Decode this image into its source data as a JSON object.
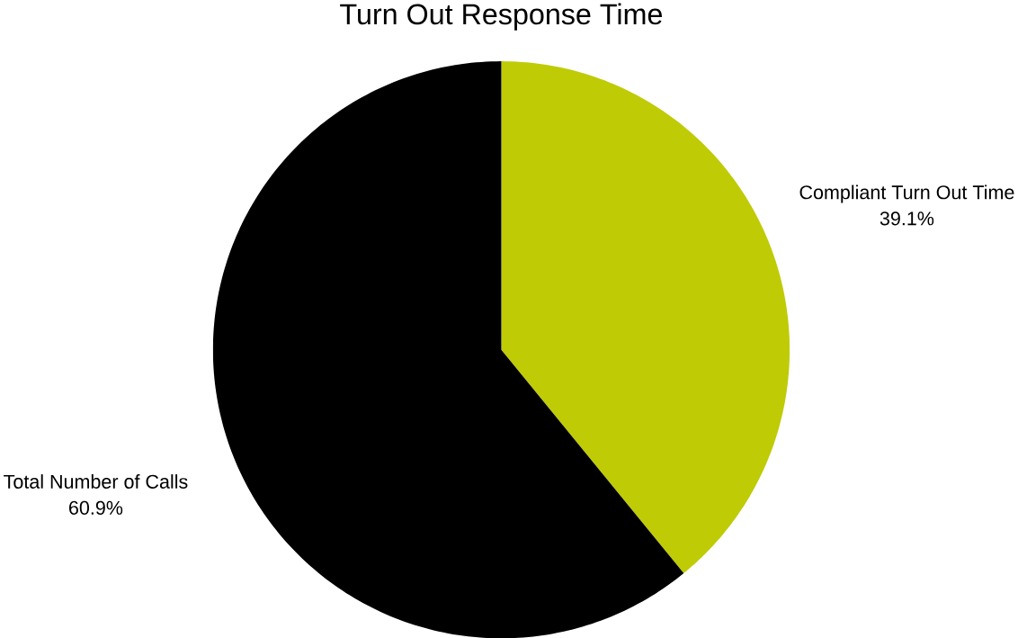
{
  "chart_data": {
    "type": "pie",
    "title": "Turn Out Response Time",
    "categories": [
      "Compliant Turn Out Time",
      "Total Number of Calls"
    ],
    "values": [
      39.1,
      60.9
    ],
    "value_labels": [
      "39.1%",
      "60.9%"
    ],
    "colors": [
      "#bfcb05",
      "#000000"
    ]
  }
}
